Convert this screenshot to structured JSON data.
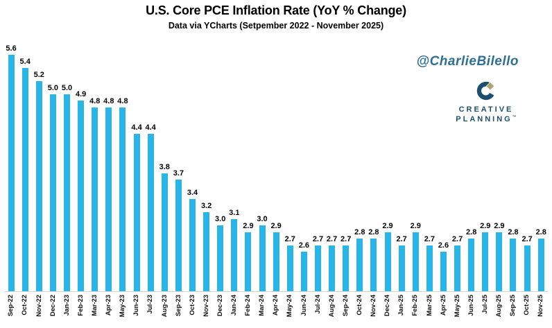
{
  "header": {
    "title": "U.S. Core PCE Inflation Rate (YoY % Change)",
    "subtitle": "Data via YCharts (Setpember 2022 - November 2025)"
  },
  "watermark": {
    "handle": "@CharlieBilello",
    "logo_line1": "CREATIVE",
    "logo_line2": "PLANNING",
    "logo_trademark": "™"
  },
  "colors": {
    "bar": "#29b5e8",
    "handle_text": "#2e6f94",
    "logo_navy": "#1c4f6e",
    "logo_gold": "#b3a26b",
    "axis_line": "#d6d6d6",
    "label_text": "#000000"
  },
  "chart_data": {
    "type": "bar",
    "title": "U.S. Core PCE Inflation Rate (YoY % Change)",
    "subtitle": "Data via YCharts (Setpember 2022 - November 2025)",
    "xlabel": "",
    "ylabel": "",
    "categories": [
      "Sep-22",
      "Oct-22",
      "Nov-22",
      "Dec-22",
      "Jan-23",
      "Feb-23",
      "Mar-23",
      "Apr-23",
      "May-23",
      "Jun-23",
      "Jul-23",
      "Aug-23",
      "Sep-23",
      "Oct-23",
      "Nov-23",
      "Dec-23",
      "Jan-24",
      "Feb-24",
      "Mar-24",
      "Apr-24",
      "May-24",
      "Jun-24",
      "Jul-24",
      "Aug-24",
      "Sep-24",
      "Oct-24",
      "Nov-24",
      "Dec-24",
      "Jan-25",
      "Feb-25",
      "Mar-25",
      "Apr-25",
      "May-25",
      "Jun-25",
      "Jul-25",
      "Aug-25",
      "Sep-25",
      "Oct-25",
      "Nov-25"
    ],
    "values": [
      5.6,
      5.4,
      5.2,
      5.0,
      5.0,
      4.9,
      4.8,
      4.8,
      4.8,
      4.4,
      4.4,
      3.8,
      3.7,
      3.4,
      3.2,
      3.0,
      3.1,
      2.9,
      3.0,
      2.9,
      2.7,
      2.6,
      2.7,
      2.7,
      2.7,
      2.8,
      2.8,
      2.9,
      2.7,
      2.9,
      2.7,
      2.6,
      2.7,
      2.8,
      2.9,
      2.9,
      2.8,
      2.7,
      2.8
    ],
    "ylim": [
      2.0,
      5.86
    ],
    "grid": false,
    "legend": false,
    "data_labels": "above bars, one decimal",
    "x_tick_rotation": 90
  }
}
